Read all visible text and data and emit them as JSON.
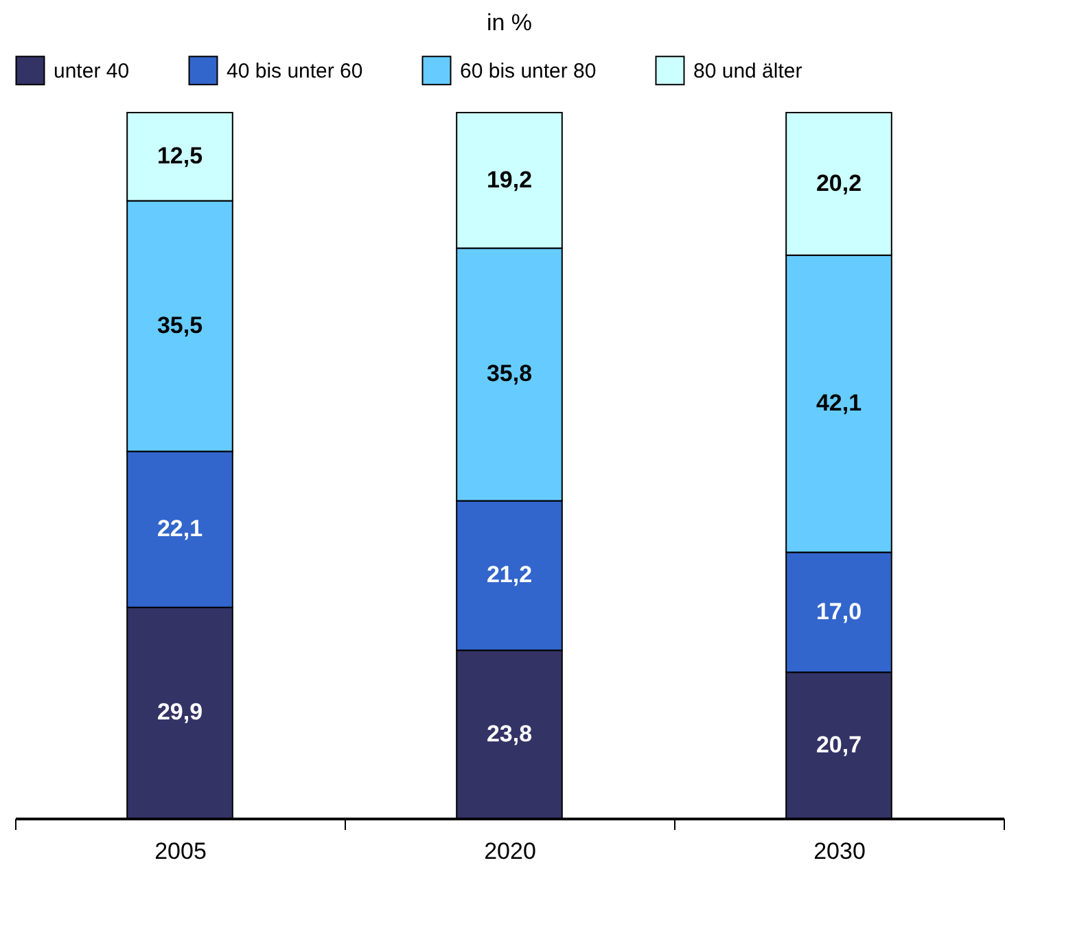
{
  "chart_data": {
    "type": "bar",
    "title": "in %",
    "stacked": true,
    "categories": [
      "2005",
      "2020",
      "2030"
    ],
    "series": [
      {
        "name": "unter 40",
        "color": "#333366",
        "values": [
          29.9,
          23.8,
          20.7
        ],
        "value_labels": [
          "29,9",
          "23,8",
          "20,7"
        ]
      },
      {
        "name": "40 bis unter 60",
        "color": "#3366cc",
        "values": [
          22.1,
          21.2,
          17.0
        ],
        "value_labels": [
          "22,1",
          "21,2",
          "17,0"
        ]
      },
      {
        "name": "60 bis unter 80",
        "color": "#66ccff",
        "values": [
          35.5,
          35.8,
          42.1
        ],
        "value_labels": [
          "35,5",
          "35,8",
          "42,1"
        ]
      },
      {
        "name": "80 und älter",
        "color": "#ccffff",
        "values": [
          12.5,
          19.2,
          20.2
        ],
        "value_labels": [
          "12,5",
          "19,2",
          "20,2"
        ]
      }
    ],
    "legend": "top",
    "grid": false
  }
}
